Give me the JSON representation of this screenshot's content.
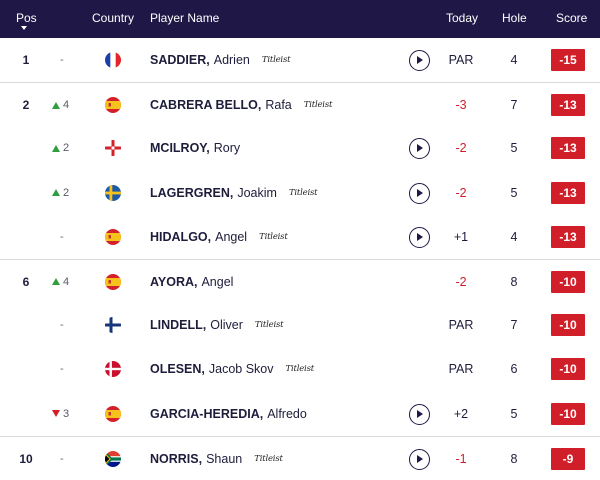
{
  "header": {
    "pos": "Pos",
    "country": "Country",
    "player_name": "Player Name",
    "today": "Today",
    "hole": "Hole",
    "score": "Score"
  },
  "rows": [
    {
      "pos": "1",
      "move_dir": "none",
      "move": "-",
      "flag": "flag-france-icon",
      "surname": "SADDIER,",
      "first": "Adrien",
      "logo": "Titleist",
      "play": true,
      "today": "PAR",
      "hole": "4",
      "score": "-15",
      "divider": false
    },
    {
      "pos": "2",
      "move_dir": "up",
      "move": "4",
      "flag": "flag-spain-icon",
      "surname": "CABRERA BELLO,",
      "first": "Rafa",
      "logo": "Titleist",
      "play": false,
      "today": "-3",
      "hole": "7",
      "score": "-13",
      "divider": true
    },
    {
      "pos": "",
      "move_dir": "up",
      "move": "2",
      "flag": "flag-northern-ireland-icon",
      "surname": "MCILROY,",
      "first": "Rory",
      "logo": "",
      "play": true,
      "today": "-2",
      "hole": "5",
      "score": "-13",
      "divider": false
    },
    {
      "pos": "",
      "move_dir": "up",
      "move": "2",
      "flag": "flag-sweden-icon",
      "surname": "LAGERGREN,",
      "first": "Joakim",
      "logo": "Titleist",
      "play": true,
      "today": "-2",
      "hole": "5",
      "score": "-13",
      "divider": false
    },
    {
      "pos": "",
      "move_dir": "none",
      "move": "-",
      "flag": "flag-spain-icon",
      "surname": "HIDALGO,",
      "first": "Angel",
      "logo": "Titleist",
      "play": true,
      "today": "+1",
      "hole": "4",
      "score": "-13",
      "divider": false
    },
    {
      "pos": "6",
      "move_dir": "up",
      "move": "4",
      "flag": "flag-spain-icon",
      "surname": "AYORA,",
      "first": "Angel",
      "logo": "",
      "play": false,
      "today": "-2",
      "hole": "8",
      "score": "-10",
      "divider": true
    },
    {
      "pos": "",
      "move_dir": "none",
      "move": "-",
      "flag": "flag-finland-icon",
      "surname": "LINDELL,",
      "first": "Oliver",
      "logo": "Titleist",
      "play": false,
      "today": "PAR",
      "hole": "7",
      "score": "-10",
      "divider": false
    },
    {
      "pos": "",
      "move_dir": "none",
      "move": "-",
      "flag": "flag-denmark-icon",
      "surname": "OLESEN,",
      "first": "Jacob Skov",
      "logo": "Titleist",
      "play": false,
      "today": "PAR",
      "hole": "6",
      "score": "-10",
      "divider": false
    },
    {
      "pos": "",
      "move_dir": "down",
      "move": "3",
      "flag": "flag-spain-icon",
      "surname": "GARCIA-HEREDIA,",
      "first": "Alfredo",
      "logo": "",
      "play": true,
      "today": "+2",
      "hole": "5",
      "score": "-10",
      "divider": false
    },
    {
      "pos": "10",
      "move_dir": "none",
      "move": "-",
      "flag": "flag-south-africa-icon",
      "surname": "NORRIS,",
      "first": "Shaun",
      "logo": "Titleist",
      "play": true,
      "today": "-1",
      "hole": "8",
      "score": "-9",
      "divider": true
    }
  ],
  "colors": {
    "header_bg": "#1f1746",
    "score_bg": "#d11f2a",
    "up_arrow": "#2e9e3e",
    "down_arrow": "#d11f2a",
    "negative_today": "#d11f2a"
  }
}
